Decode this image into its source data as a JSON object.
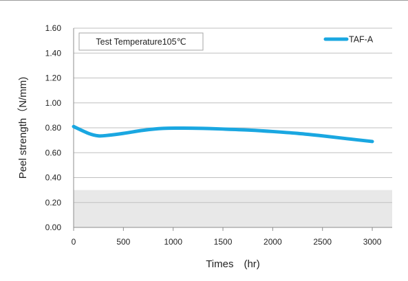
{
  "chart_data": {
    "type": "line",
    "title": "",
    "xlabel": "Times　(hr)",
    "ylabel": "Peel strength（N/mm)",
    "xlim": [
      0,
      3200
    ],
    "ylim": [
      0,
      1.6
    ],
    "x_ticks": [
      "0",
      "500",
      "1000",
      "1500",
      "2000",
      "2500",
      "3000"
    ],
    "y_ticks": [
      "0.00",
      "0.20",
      "0.40",
      "0.60",
      "0.80",
      "1.00",
      "1.20",
      "1.40",
      "1.60"
    ],
    "grid": "horizontal",
    "legend_position": "top-right",
    "annotation": "Test Temperature105℃",
    "shaded_band": {
      "y_from": 0,
      "y_to": 0.3,
      "color": "#e8e8e8"
    },
    "series": [
      {
        "name": "TAF-A",
        "color": "#1aa7e1",
        "x": [
          0,
          150,
          250,
          350,
          500,
          700,
          900,
          1100,
          1300,
          1500,
          1750,
          2000,
          2250,
          2500,
          2750,
          3000
        ],
        "y": [
          0.81,
          0.755,
          0.735,
          0.74,
          0.755,
          0.78,
          0.795,
          0.797,
          0.795,
          0.79,
          0.782,
          0.77,
          0.755,
          0.735,
          0.712,
          0.69
        ]
      }
    ]
  }
}
